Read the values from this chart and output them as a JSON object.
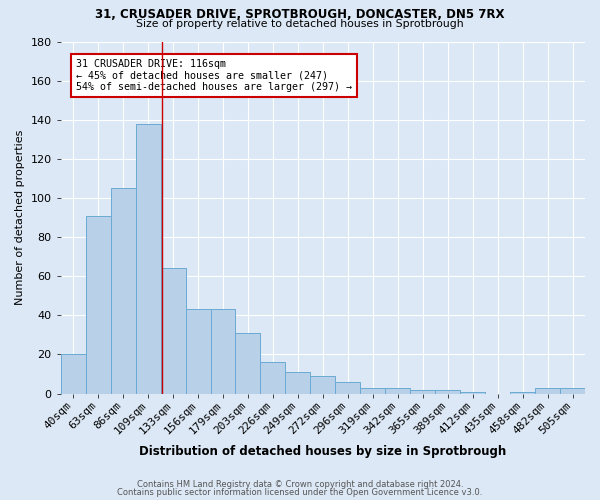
{
  "title_line1": "31, CRUSADER DRIVE, SPROTBROUGH, DONCASTER, DN5 7RX",
  "title_line2": "Size of property relative to detached houses in Sprotbrough",
  "xlabel": "Distribution of detached houses by size in Sprotbrough",
  "ylabel": "Number of detached properties",
  "bar_labels": [
    "40sqm",
    "63sqm",
    "86sqm",
    "109sqm",
    "133sqm",
    "156sqm",
    "179sqm",
    "203sqm",
    "226sqm",
    "249sqm",
    "272sqm",
    "296sqm",
    "319sqm",
    "342sqm",
    "365sqm",
    "389sqm",
    "412sqm",
    "435sqm",
    "458sqm",
    "482sqm",
    "505sqm"
  ],
  "bar_values": [
    20,
    91,
    105,
    138,
    64,
    43,
    43,
    31,
    16,
    11,
    9,
    6,
    3,
    3,
    2,
    2,
    1,
    0,
    1,
    3,
    3
  ],
  "bar_color": "#b8d0e8",
  "bar_edge_color": "#6aaad4",
  "background_color": "#dce8f5",
  "grid_color": "#ffffff",
  "red_line_x": 3.57,
  "annotation_line1": "31 CRUSADER DRIVE: 116sqm",
  "annotation_line2": "← 45% of detached houses are smaller (247)",
  "annotation_line3": "54% of semi-detached houses are larger (297) →",
  "annotation_box_color": "#ffffff",
  "annotation_box_edge": "#cc0000",
  "ylim": [
    0,
    180
  ],
  "yticks": [
    0,
    20,
    40,
    60,
    80,
    100,
    120,
    140,
    160,
    180
  ],
  "footer_line1": "Contains HM Land Registry data © Crown copyright and database right 2024.",
  "footer_line2": "Contains public sector information licensed under the Open Government Licence v3.0."
}
